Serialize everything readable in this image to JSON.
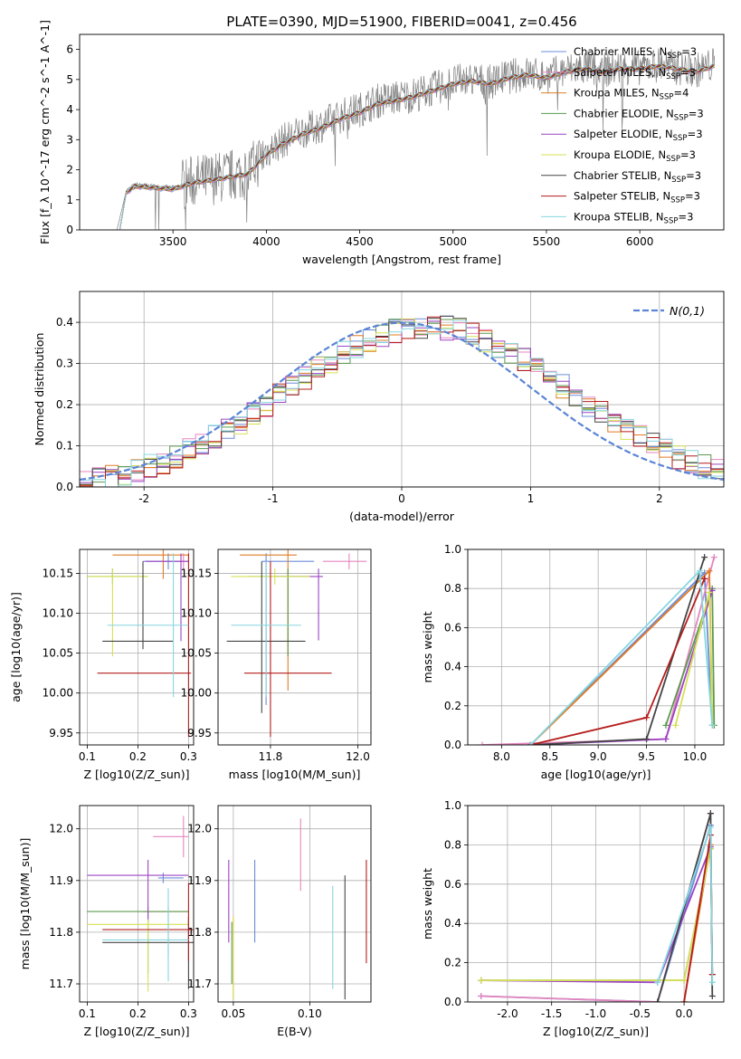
{
  "figure_title": "PLATE=0390, MJD=51900, FIBERID=0041, z=0.456",
  "models": [
    {
      "name": "Chabrier MILES",
      "nssp": 3,
      "color": "#6b8cd8"
    },
    {
      "name": "Salpeter MILES",
      "nssp": 3,
      "color": "#e585bf"
    },
    {
      "name": "Kroupa MILES",
      "nssp": 4,
      "color": "#e07b26"
    },
    {
      "name": "Chabrier ELODIE",
      "nssp": 3,
      "color": "#5c9a50"
    },
    {
      "name": "Salpeter ELODIE",
      "nssp": 3,
      "color": "#9b45c4"
    },
    {
      "name": "Kroupa ELODIE",
      "nssp": 3,
      "color": "#d6e055"
    },
    {
      "name": "Chabrier STELIB",
      "nssp": 3,
      "color": "#444444"
    },
    {
      "name": "Salpeter STELIB",
      "nssp": 3,
      "color": "#b51d1d"
    },
    {
      "name": "Kroupa STELIB",
      "nssp": 3,
      "color": "#86d6e0"
    }
  ],
  "chart_data": [
    {
      "id": "spectrum",
      "type": "line",
      "xlabel": "wavelength [Angstrom, rest frame]",
      "ylabel": "Flux [f_λ 10^-17 erg cm^-2 s^-1 A^-1]",
      "xlim": [
        3000,
        6450
      ],
      "ylim": [
        0,
        6.5
      ],
      "xticks": [
        3500,
        4000,
        4500,
        5000,
        5500,
        6000
      ],
      "yticks": [
        0,
        1,
        2,
        3,
        4,
        5,
        6
      ],
      "series": [
        {
          "name": "data",
          "x": [
            3200,
            3250,
            3300,
            3400,
            3500,
            3600,
            3700,
            3800,
            3900,
            4000,
            4100,
            4200,
            4300,
            4400,
            4500,
            4600,
            4700,
            4800,
            4900,
            5000,
            5100,
            5200,
            5300,
            5400,
            5500,
            5600,
            5700,
            5800,
            5900,
            6000,
            6100,
            6200,
            6300,
            6400
          ],
          "y": [
            0.0,
            1.3,
            1.5,
            1.45,
            1.4,
            1.6,
            1.7,
            1.8,
            1.9,
            2.6,
            3.0,
            3.3,
            3.5,
            3.8,
            4.0,
            4.3,
            4.4,
            4.5,
            4.7,
            4.9,
            5.0,
            4.9,
            5.1,
            5.2,
            5.1,
            5.3,
            5.4,
            5.3,
            5.4,
            5.4,
            5.5,
            5.4,
            5.3,
            5.5
          ]
        },
        {
          "name": "model",
          "x": [
            3200,
            3250,
            3300,
            3400,
            3500,
            3600,
            3700,
            3800,
            3900,
            4000,
            4100,
            4200,
            4300,
            4400,
            4500,
            4600,
            4700,
            4800,
            4900,
            5000,
            5100,
            5200,
            5300,
            5400,
            5500,
            5600,
            5700,
            5800,
            5900,
            6000,
            6100,
            6200,
            6300,
            6400
          ],
          "y": [
            0.0,
            1.25,
            1.45,
            1.4,
            1.35,
            1.55,
            1.65,
            1.75,
            1.85,
            2.5,
            2.9,
            3.2,
            3.4,
            3.7,
            3.9,
            4.2,
            4.3,
            4.45,
            4.65,
            4.85,
            4.95,
            4.85,
            5.05,
            5.15,
            5.05,
            5.25,
            5.35,
            5.25,
            5.35,
            5.35,
            5.45,
            5.35,
            5.25,
            5.45
          ]
        }
      ]
    },
    {
      "id": "residuals",
      "type": "histogram",
      "xlabel": "(data-model)/error",
      "ylabel": "Normed distribution",
      "xlim": [
        -2.5,
        2.5
      ],
      "ylim": [
        0,
        0.475
      ],
      "xticks": [
        -2,
        -1,
        0,
        1,
        2
      ],
      "yticks": [
        0.0,
        0.1,
        0.2,
        0.3,
        0.4
      ],
      "legend": "N(0,1)",
      "grid": true
    },
    {
      "id": "age_vs_Z",
      "type": "errorbar",
      "xlabel": "Z [log10(Z/Z_sun)]",
      "ylabel": "age [log10(age/yr)]",
      "xlim": [
        0.085,
        0.31
      ],
      "ylim": [
        9.935,
        10.18
      ],
      "xticks": [
        0.1,
        0.2,
        0.3
      ],
      "yticks": [
        9.95,
        10.0,
        10.05,
        10.1,
        10.15
      ],
      "points": [
        {
          "model": "Chabrier MILES",
          "x": 0.26,
          "xerr": [
            0.05,
            0.03
          ],
          "y": 10.165,
          "yerr": [
            0.01,
            0.01
          ]
        },
        {
          "model": "Salpeter MILES",
          "x": 0.29,
          "xerr": [
            0.01,
            0.01
          ],
          "y": 10.165,
          "yerr": [
            0.01,
            0.01
          ]
        },
        {
          "model": "Kroupa MILES",
          "x": 0.25,
          "xerr": [
            0.1,
            0.05
          ],
          "y": 10.173,
          "yerr": [
            0.03,
            0.01
          ]
        },
        {
          "model": "Chabrier ELODIE",
          "x": 0.15,
          "xerr": [
            0.05,
            0.07
          ],
          "y": 10.146,
          "yerr": [
            0.01,
            0.01
          ]
        },
        {
          "model": "Salpeter ELODIE",
          "x": 0.285,
          "xerr": [
            0.07,
            0.015
          ],
          "y": 10.165,
          "yerr": [
            0.1,
            0.01
          ]
        },
        {
          "model": "Kroupa ELODIE",
          "x": 0.15,
          "xerr": [
            0.05,
            0.07
          ],
          "y": 10.146,
          "yerr": [
            0.1,
            0.01
          ]
        },
        {
          "model": "Chabrier STELIB",
          "x": 0.21,
          "xerr": [
            0.08,
            0.06
          ],
          "y": 10.065,
          "yerr": [
            0.01,
            0.1
          ]
        },
        {
          "model": "Salpeter STELIB",
          "x": 0.3,
          "xerr": [
            0.18,
            0.005
          ],
          "y": 10.025,
          "yerr": [
            0.08,
            0.15
          ]
        },
        {
          "model": "Kroupa STELIB",
          "x": 0.27,
          "xerr": [
            0.13,
            0.03
          ],
          "y": 10.085,
          "yerr": [
            0.09,
            0.09
          ]
        }
      ]
    },
    {
      "id": "age_vs_mass",
      "type": "errorbar",
      "xlabel": "mass [log10(M/M_sun)]",
      "ylabel": "",
      "xlim": [
        11.68,
        12.03
      ],
      "ylim": [
        9.935,
        10.18
      ],
      "xticks": [
        11.8,
        12.0
      ],
      "yticks": [
        9.95,
        10.0,
        10.05,
        10.1,
        10.15
      ],
      "points": [
        {
          "model": "Chabrier MILES",
          "x": 11.79,
          "xerr": [
            0.01,
            0.11
          ],
          "y": 10.165,
          "yerr": [
            0.18,
            0.01
          ]
        },
        {
          "model": "Salpeter MILES",
          "x": 11.98,
          "xerr": [
            0.06,
            0.04
          ],
          "y": 10.165,
          "yerr": [
            0.01,
            0.01
          ]
        },
        {
          "model": "Kroupa MILES",
          "x": 11.84,
          "xerr": [
            0.11,
            0.02
          ],
          "y": 10.173,
          "yerr": [
            0.17,
            0.01
          ]
        },
        {
          "model": "Chabrier ELODIE",
          "x": 11.84,
          "xerr": [
            0.09,
            0.05
          ],
          "y": 10.146,
          "yerr": [
            0.1,
            0.01
          ]
        },
        {
          "model": "Salpeter ELODIE",
          "x": 11.91,
          "xerr": [
            0.1,
            0.01
          ],
          "y": 10.146,
          "yerr": [
            0.08,
            0.01
          ]
        },
        {
          "model": "Kroupa ELODIE",
          "x": 11.81,
          "xerr": [
            0.1,
            0.08
          ],
          "y": 10.146,
          "yerr": [
            0.01,
            0.01
          ]
        },
        {
          "model": "Chabrier STELIB",
          "x": 11.78,
          "xerr": [
            0.08,
            0.1
          ],
          "y": 10.065,
          "yerr": [
            0.09,
            0.1
          ]
        },
        {
          "model": "Salpeter STELIB",
          "x": 11.8,
          "xerr": [
            0.06,
            0.14
          ],
          "y": 10.025,
          "yerr": [
            0.08,
            0.14
          ]
        },
        {
          "model": "Kroupa STELIB",
          "x": 11.79,
          "xerr": [
            0.08,
            0.08
          ],
          "y": 10.085,
          "yerr": [
            0.09,
            0.08
          ]
        }
      ]
    },
    {
      "id": "mass_weight_vs_age",
      "type": "line",
      "xlabel": "age [log10(age/yr)]",
      "ylabel": "mass weight",
      "xlim": [
        7.65,
        10.3
      ],
      "ylim": [
        0,
        1.0
      ],
      "xticks": [
        8.0,
        8.5,
        9.0,
        9.5,
        10.0
      ],
      "yticks": [
        0.0,
        0.2,
        0.4,
        0.6,
        0.8,
        1.0
      ],
      "series": [
        {
          "name": "Chabrier MILES",
          "x": [
            8.3,
            10.1,
            10.18
          ],
          "y": [
            0.0,
            0.88,
            0.1
          ]
        },
        {
          "name": "Salpeter MILES",
          "x": [
            7.8,
            9.7,
            10.2
          ],
          "y": [
            0.0,
            0.03,
            0.96
          ]
        },
        {
          "name": "Kroupa MILES",
          "x": [
            8.3,
            10.15,
            10.18
          ],
          "y": [
            0.0,
            0.89,
            0.1
          ]
        },
        {
          "name": "Chabrier ELODIE",
          "x": [
            9.7,
            10.18,
            10.2
          ],
          "y": [
            0.1,
            0.8,
            0.1
          ]
        },
        {
          "name": "Salpeter ELODIE",
          "x": [
            8.3,
            9.7,
            10.18
          ],
          "y": [
            0.0,
            0.03,
            0.79
          ]
        },
        {
          "name": "Kroupa ELODIE",
          "x": [
            9.8,
            10.15,
            10.18
          ],
          "y": [
            0.1,
            0.78,
            0.1
          ]
        },
        {
          "name": "Chabrier STELIB",
          "x": [
            8.3,
            9.5,
            10.1
          ],
          "y": [
            0.0,
            0.03,
            0.96
          ]
        },
        {
          "name": "Salpeter STELIB",
          "x": [
            8.3,
            9.5,
            10.1
          ],
          "y": [
            0.0,
            0.14,
            0.85
          ]
        },
        {
          "name": "Kroupa STELIB",
          "x": [
            8.3,
            10.05,
            10.18
          ],
          "y": [
            0.0,
            0.89,
            0.1
          ]
        }
      ]
    },
    {
      "id": "mass_vs_Z",
      "type": "errorbar",
      "xlabel": "Z [log10(Z/Z_sun)]",
      "ylabel": "mass [log10(M/M_sun)]",
      "xlim": [
        0.085,
        0.31
      ],
      "ylim": [
        11.665,
        12.045
      ],
      "xticks": [
        0.1,
        0.2,
        0.3
      ],
      "yticks": [
        11.7,
        11.8,
        11.9,
        12.0
      ],
      "points": [
        {
          "model": "Chabrier MILES",
          "x": 0.25,
          "xerr": [
            0.01,
            0.04
          ],
          "y": 11.905,
          "yerr": [
            0.01,
            0.01
          ]
        },
        {
          "model": "Salpeter MILES",
          "x": 0.29,
          "xerr": [
            0.06,
            0.01
          ],
          "y": 11.985,
          "yerr": [
            0.04,
            0.04
          ]
        },
        {
          "model": "Kroupa MILES",
          "x": 0.26,
          "xerr": [
            0.05,
            0.04
          ],
          "y": 11.84,
          "yerr": [
            0.09,
            0.01
          ]
        },
        {
          "model": "Chabrier ELODIE",
          "x": 0.22,
          "xerr": [
            0.12,
            0.08
          ],
          "y": 11.84,
          "yerr": [
            0.12,
            0.01
          ]
        },
        {
          "model": "Salpeter ELODIE",
          "x": 0.22,
          "xerr": [
            0.12,
            0.08
          ],
          "y": 11.91,
          "yerr": [
            0.09,
            0.03
          ]
        },
        {
          "model": "Kroupa ELODIE",
          "x": 0.22,
          "xerr": [
            0.12,
            0.08
          ],
          "y": 11.815,
          "yerr": [
            0.13,
            0.01
          ]
        },
        {
          "model": "Chabrier STELIB",
          "x": 0.3,
          "xerr": [
            0.17,
            0.01
          ],
          "y": 11.78,
          "yerr": [
            0.09,
            0.05
          ]
        },
        {
          "model": "Salpeter STELIB",
          "x": 0.3,
          "xerr": [
            0.17,
            0.01
          ],
          "y": 11.805,
          "yerr": [
            0.06,
            0.09
          ]
        },
        {
          "model": "Kroupa STELIB",
          "x": 0.26,
          "xerr": [
            0.13,
            0.04
          ],
          "y": 11.785,
          "yerr": [
            0.08,
            0.1
          ]
        }
      ]
    },
    {
      "id": "mass_vs_EBV",
      "type": "errorbar",
      "xlabel": "E(B-V)",
      "ylabel": "",
      "xlim": [
        0.04,
        0.14
      ],
      "ylim": [
        11.665,
        12.045
      ],
      "xticks": [
        0.05,
        0.1
      ],
      "yticks": [
        11.7,
        11.8,
        11.9,
        12.0
      ],
      "points": [
        {
          "model": "Chabrier MILES",
          "x": 0.064,
          "xerr": [
            0,
            0
          ],
          "y": 11.86,
          "yerr": [
            0.08,
            0.08
          ]
        },
        {
          "model": "Salpeter MILES",
          "x": 0.094,
          "xerr": [
            0,
            0
          ],
          "y": 11.95,
          "yerr": [
            0.07,
            0.07
          ]
        },
        {
          "model": "Kroupa MILES",
          "x": 0.05,
          "xerr": [
            0,
            0
          ],
          "y": 11.75,
          "yerr": [
            0.08,
            0.08
          ]
        },
        {
          "model": "Chabrier ELODIE",
          "x": 0.049,
          "xerr": [
            0,
            0
          ],
          "y": 11.76,
          "yerr": [
            0.06,
            0.06
          ]
        },
        {
          "model": "Salpeter ELODIE",
          "x": 0.047,
          "xerr": [
            0,
            0
          ],
          "y": 11.86,
          "yerr": [
            0.08,
            0.08
          ]
        },
        {
          "model": "Kroupa ELODIE",
          "x": 0.05,
          "xerr": [
            0,
            0
          ],
          "y": 11.75,
          "yerr": [
            0.08,
            0.08
          ]
        },
        {
          "model": "Chabrier STELIB",
          "x": 0.123,
          "xerr": [
            0,
            0
          ],
          "y": 11.79,
          "yerr": [
            0.12,
            0.12
          ]
        },
        {
          "model": "Salpeter STELIB",
          "x": 0.137,
          "xerr": [
            0,
            0
          ],
          "y": 11.84,
          "yerr": [
            0.1,
            0.1
          ]
        },
        {
          "model": "Kroupa STELIB",
          "x": 0.115,
          "xerr": [
            0,
            0
          ],
          "y": 11.79,
          "yerr": [
            0.1,
            0.1
          ]
        }
      ]
    },
    {
      "id": "mass_weight_vs_Z",
      "type": "line",
      "xlabel": "Z [log10(Z/Z_sun)]",
      "ylabel": "mass weight",
      "xlim": [
        -2.45,
        0.45
      ],
      "ylim": [
        0,
        1.0
      ],
      "xticks": [
        -2.0,
        -1.5,
        -1.0,
        -0.5,
        0.0
      ],
      "yticks": [
        0.0,
        0.2,
        0.4,
        0.6,
        0.8,
        1.0
      ],
      "series": [
        {
          "name": "Chabrier MILES",
          "x": [
            -2.3,
            -0.3,
            0.3
          ],
          "y": [
            0.03,
            0.0,
            0.9
          ]
        },
        {
          "name": "Salpeter MILES",
          "x": [
            -2.3,
            -0.3,
            0.3
          ],
          "y": [
            0.03,
            0.0,
            0.96
          ]
        },
        {
          "name": "Kroupa MILES",
          "x": [
            0.0,
            0.3,
            0.32
          ],
          "y": [
            0.0,
            0.8,
            0.14
          ]
        },
        {
          "name": "Chabrier ELODIE",
          "x": [
            -2.3,
            0.0,
            0.3
          ],
          "y": [
            0.11,
            0.11,
            0.78
          ]
        },
        {
          "name": "Salpeter ELODIE",
          "x": [
            -2.3,
            -0.3,
            0.3
          ],
          "y": [
            0.11,
            0.1,
            0.79
          ]
        },
        {
          "name": "Kroupa ELODIE",
          "x": [
            -2.3,
            0.0,
            0.3
          ],
          "y": [
            0.11,
            0.11,
            0.78
          ]
        },
        {
          "name": "Chabrier STELIB",
          "x": [
            -0.3,
            0.3,
            0.32
          ],
          "y": [
            0.0,
            0.96,
            0.03
          ]
        },
        {
          "name": "Salpeter STELIB",
          "x": [
            0.0,
            0.3,
            0.32
          ],
          "y": [
            0.0,
            0.85,
            0.14
          ]
        },
        {
          "name": "Kroupa STELIB",
          "x": [
            -0.3,
            0.3,
            0.32
          ],
          "y": [
            0.1,
            0.89,
            0.1
          ]
        }
      ]
    }
  ]
}
